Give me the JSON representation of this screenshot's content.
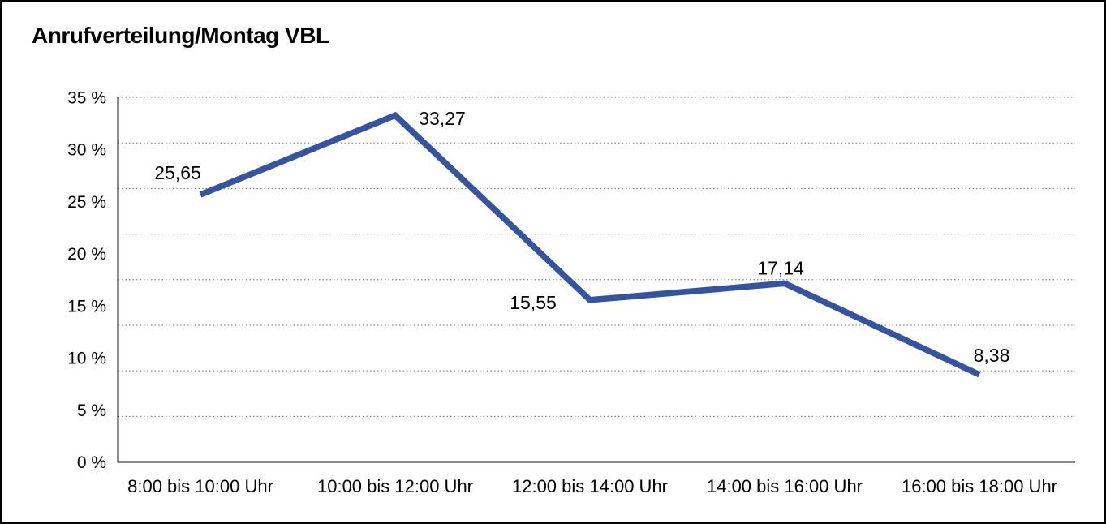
{
  "figure": {
    "background": "#ffffff",
    "border_color": "#000000"
  },
  "chart_data": {
    "type": "line",
    "title": "Anrufverteilung/Montag VBL",
    "categories": [
      "8:00 bis 10:00 Uhr",
      "10:00 bis 12:00 Uhr",
      "12:00 bis 14:00 Uhr",
      "14:00 bis 16:00 Uhr",
      "16:00 bis 18:00 Uhr"
    ],
    "values": [
      25.65,
      33.27,
      15.55,
      17.14,
      8.38
    ],
    "value_labels": [
      "25,65",
      "33,27",
      "15,55",
      "17,14",
      "8,38"
    ],
    "y_ticks": [
      {
        "value": 0,
        "label": "0 %"
      },
      {
        "value": 5,
        "label": "5 %"
      },
      {
        "value": 10,
        "label": "10 %"
      },
      {
        "value": 15,
        "label": "15 %"
      },
      {
        "value": 20,
        "label": "20 %"
      },
      {
        "value": 25,
        "label": "25 %"
      },
      {
        "value": 30,
        "label": "30 %"
      },
      {
        "value": 35,
        "label": "35 %"
      }
    ],
    "ylim": [
      0,
      35
    ],
    "xlabel": "",
    "ylabel": "",
    "grid": "horizontal-dotted",
    "grid_divisions": 8,
    "legend": "none",
    "line_color": "#35549D",
    "grid_color": "#707070",
    "axis_color": "#1a1a1a",
    "text_color": "#000000"
  }
}
